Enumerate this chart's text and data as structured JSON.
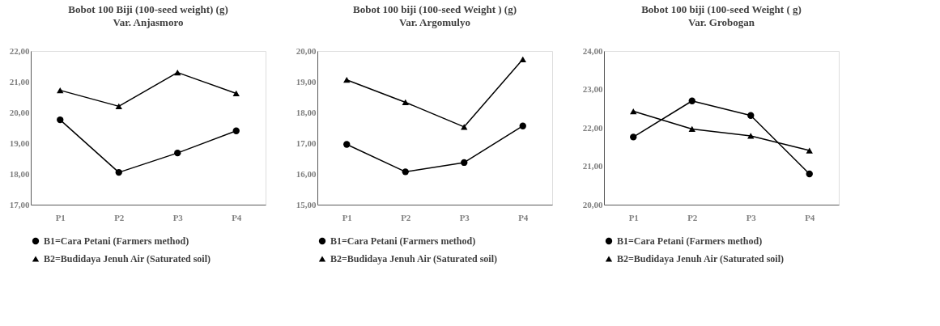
{
  "chart_data": [
    {
      "type": "line",
      "title": "Bobot 100 Biji (100-seed weight) (g)",
      "subtitle": "Var. Anjasmoro",
      "categories": [
        "P1",
        "P2",
        "P3",
        "P4"
      ],
      "ylim": [
        17,
        22
      ],
      "yticks": [
        {
          "value": 17,
          "label": "17,00"
        },
        {
          "value": 18,
          "label": "18,00"
        },
        {
          "value": 19,
          "label": "19,00"
        },
        {
          "value": 20,
          "label": "20,00"
        },
        {
          "value": 21,
          "label": "21,00"
        },
        {
          "value": 22,
          "label": "22,00"
        }
      ],
      "grid": false,
      "legend": "bottom",
      "series": [
        {
          "name": "B1=Cara Petani (Farmers method)",
          "color": "#000000",
          "marker": "circle",
          "values": [
            19.76,
            18.05,
            18.68,
            19.4
          ]
        },
        {
          "name": "B2=Budidaya Jenuh Air (Saturated soil)",
          "color": "#000000",
          "marker": "triangle",
          "values": [
            20.72,
            20.2,
            21.3,
            20.62
          ]
        }
      ]
    },
    {
      "type": "line",
      "title": "Bobot 100 biji (100-seed Weight ) (g)",
      "subtitle": "Var. Argomulyo",
      "categories": [
        "P1",
        "P2",
        "P3",
        "P4"
      ],
      "ylim": [
        15,
        20
      ],
      "yticks": [
        {
          "value": 15,
          "label": "15,00"
        },
        {
          "value": 16,
          "label": "16,00"
        },
        {
          "value": 17,
          "label": "17,00"
        },
        {
          "value": 18,
          "label": "18,00"
        },
        {
          "value": 19,
          "label": "19,00"
        },
        {
          "value": 20,
          "label": "20,00"
        }
      ],
      "grid": false,
      "legend": "bottom",
      "series": [
        {
          "name": "B1=Cara Petani (Farmers method)",
          "color": "#000000",
          "marker": "circle",
          "values": [
            16.96,
            16.07,
            16.37,
            17.56
          ]
        },
        {
          "name": "B2=Budidaya Jenuh Air (Saturated soil)",
          "color": "#000000",
          "marker": "triangle",
          "values": [
            19.06,
            18.33,
            17.53,
            19.73
          ]
        }
      ]
    },
    {
      "type": "line",
      "title": "Bobot 100 biji (100-seed Weight ( g)",
      "subtitle": "Var. Grobogan",
      "categories": [
        "P1",
        "P2",
        "P3",
        "P4"
      ],
      "ylim": [
        20,
        24
      ],
      "yticks": [
        {
          "value": 20,
          "label": "20,00"
        },
        {
          "value": 21,
          "label": "21,00"
        },
        {
          "value": 22,
          "label": "22,00"
        },
        {
          "value": 23,
          "label": "23,00"
        },
        {
          "value": 24,
          "label": "24,00"
        }
      ],
      "grid": false,
      "legend": "bottom",
      "series": [
        {
          "name": "B1=Cara Petani (Farmers method)",
          "color": "#000000",
          "marker": "circle",
          "values": [
            21.76,
            22.7,
            22.32,
            20.8
          ]
        },
        {
          "name": "B2=Budidaya Jenuh Air (Saturated soil)",
          "color": "#000000",
          "marker": "triangle",
          "values": [
            22.43,
            21.97,
            21.79,
            21.41
          ]
        }
      ]
    }
  ]
}
